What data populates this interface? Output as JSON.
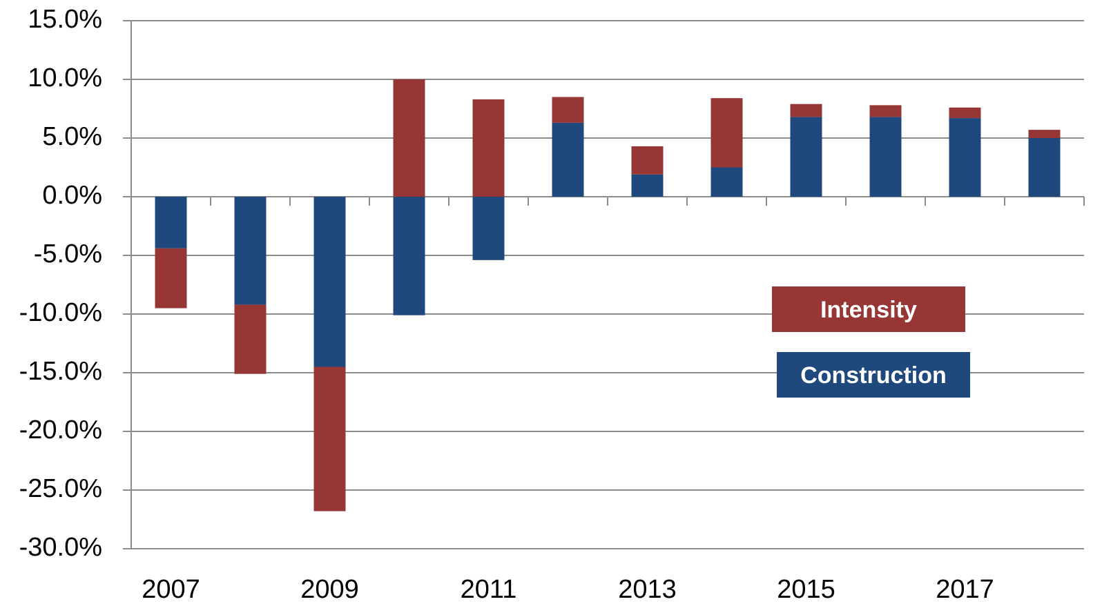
{
  "chart_data": {
    "type": "stacked_bar",
    "categories": [
      "2007",
      null,
      "2009",
      null,
      "2011",
      null,
      "2013",
      null,
      "2015",
      null,
      "2017",
      null
    ],
    "series": [
      {
        "name": "Intensity",
        "color": "#963735",
        "values": [
          -5.1,
          -5.9,
          -12.3,
          10.0,
          8.3,
          2.2,
          2.4,
          5.9,
          1.1,
          1.0,
          0.9,
          0.7
        ]
      },
      {
        "name": "Construction",
        "color": "#1f497d",
        "values": [
          -4.4,
          -9.2,
          -14.5,
          -10.1,
          -5.4,
          6.3,
          1.9,
          2.5,
          6.8,
          6.8,
          6.7,
          5.0
        ]
      }
    ],
    "ylim": [
      -30,
      15
    ],
    "yticks": [
      {
        "value": -30,
        "label": "-30.0%"
      },
      {
        "value": -25,
        "label": "-25.0%"
      },
      {
        "value": -20,
        "label": "-20.0%"
      },
      {
        "value": -15,
        "label": "-15.0%"
      },
      {
        "value": -10,
        "label": "-10.0%"
      },
      {
        "value": -5,
        "label": "-5.0%"
      },
      {
        "value": 0,
        "label": "0.0%"
      },
      {
        "value": 5,
        "label": "5.0%"
      },
      {
        "value": 10,
        "label": "10.0%"
      },
      {
        "value": 15,
        "label": "15.0%"
      }
    ],
    "grid": true
  }
}
